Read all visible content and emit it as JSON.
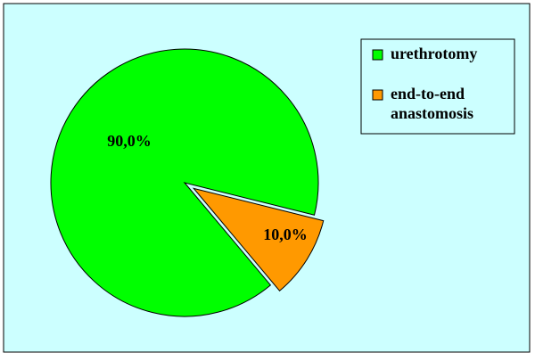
{
  "chart_data": {
    "type": "pie",
    "categories": [
      "urethrotomy",
      "end-to-end anastomosis"
    ],
    "values": [
      90,
      10
    ],
    "value_labels": [
      "90,0%",
      "10,0%"
    ],
    "colors": [
      "#00ff00",
      "#ff9900"
    ],
    "legend": "right"
  }
}
